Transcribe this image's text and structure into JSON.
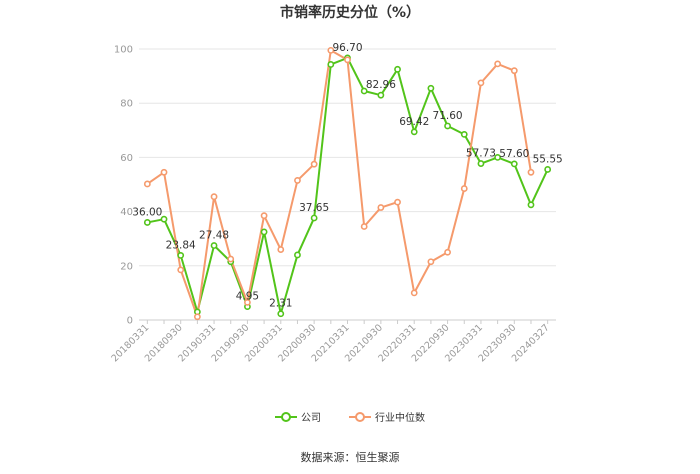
{
  "chart_data": {
    "type": "line",
    "title": "市销率历史分位（%）",
    "ylim": [
      0,
      100
    ],
    "yticks": [
      "0",
      "20",
      "40",
      "60",
      "80",
      "100"
    ],
    "xticklabels": [
      "20180331",
      "20180930",
      "20190331",
      "20190930",
      "20200331",
      "20200930",
      "20210331",
      "20210930",
      "20220331",
      "20220930",
      "20230331",
      "20230930",
      "20240327"
    ],
    "x": [
      "20180331",
      "20180630",
      "20180930",
      "20181231",
      "20190331",
      "20190630",
      "20190930",
      "20191231",
      "20200331",
      "20200630",
      "20200930",
      "20201231",
      "20210331",
      "20210630",
      "20210930",
      "20211231",
      "20220331",
      "20220630",
      "20220930",
      "20221231",
      "20230331",
      "20230630",
      "20230930",
      "20231231",
      "20240327"
    ],
    "series": [
      {
        "name": "公司",
        "color": "#52c41a",
        "values": [
          36.0,
          37.2,
          23.84,
          3.0,
          27.48,
          21.5,
          4.95,
          32.5,
          2.31,
          24.0,
          37.65,
          94.3,
          96.7,
          84.5,
          82.96,
          92.5,
          69.42,
          85.5,
          71.6,
          68.5,
          57.73,
          60.0,
          57.6,
          42.5,
          55.55
        ]
      },
      {
        "name": "行业中位数",
        "color": "#f59a6c",
        "values": [
          50.2,
          54.5,
          18.5,
          1.2,
          45.5,
          22.5,
          6.5,
          38.5,
          26.0,
          51.5,
          57.5,
          99.5,
          96.0,
          34.5,
          41.5,
          43.5,
          10.0,
          21.5,
          25.0,
          48.5,
          87.5,
          94.5,
          92.0,
          54.5,
          null
        ]
      }
    ],
    "data_labels": [
      {
        "index": 0,
        "text": "36.00"
      },
      {
        "index": 2,
        "text": "23.84"
      },
      {
        "index": 4,
        "text": "27.48"
      },
      {
        "index": 6,
        "text": "4.95"
      },
      {
        "index": 8,
        "text": "2.31"
      },
      {
        "index": 10,
        "text": "37.65"
      },
      {
        "index": 12,
        "text": "96.70"
      },
      {
        "index": 14,
        "text": "82.96"
      },
      {
        "index": 16,
        "text": "69.42"
      },
      {
        "index": 18,
        "text": "71.60"
      },
      {
        "index": 20,
        "text": "57.73"
      },
      {
        "index": 22,
        "text": "57.60"
      },
      {
        "index": 24,
        "text": "55.55"
      }
    ],
    "grid": true,
    "legend_position": "bottom"
  },
  "legend": {
    "company": "公司",
    "industry": "行业中位数"
  },
  "source": "数据来源：恒生聚源"
}
